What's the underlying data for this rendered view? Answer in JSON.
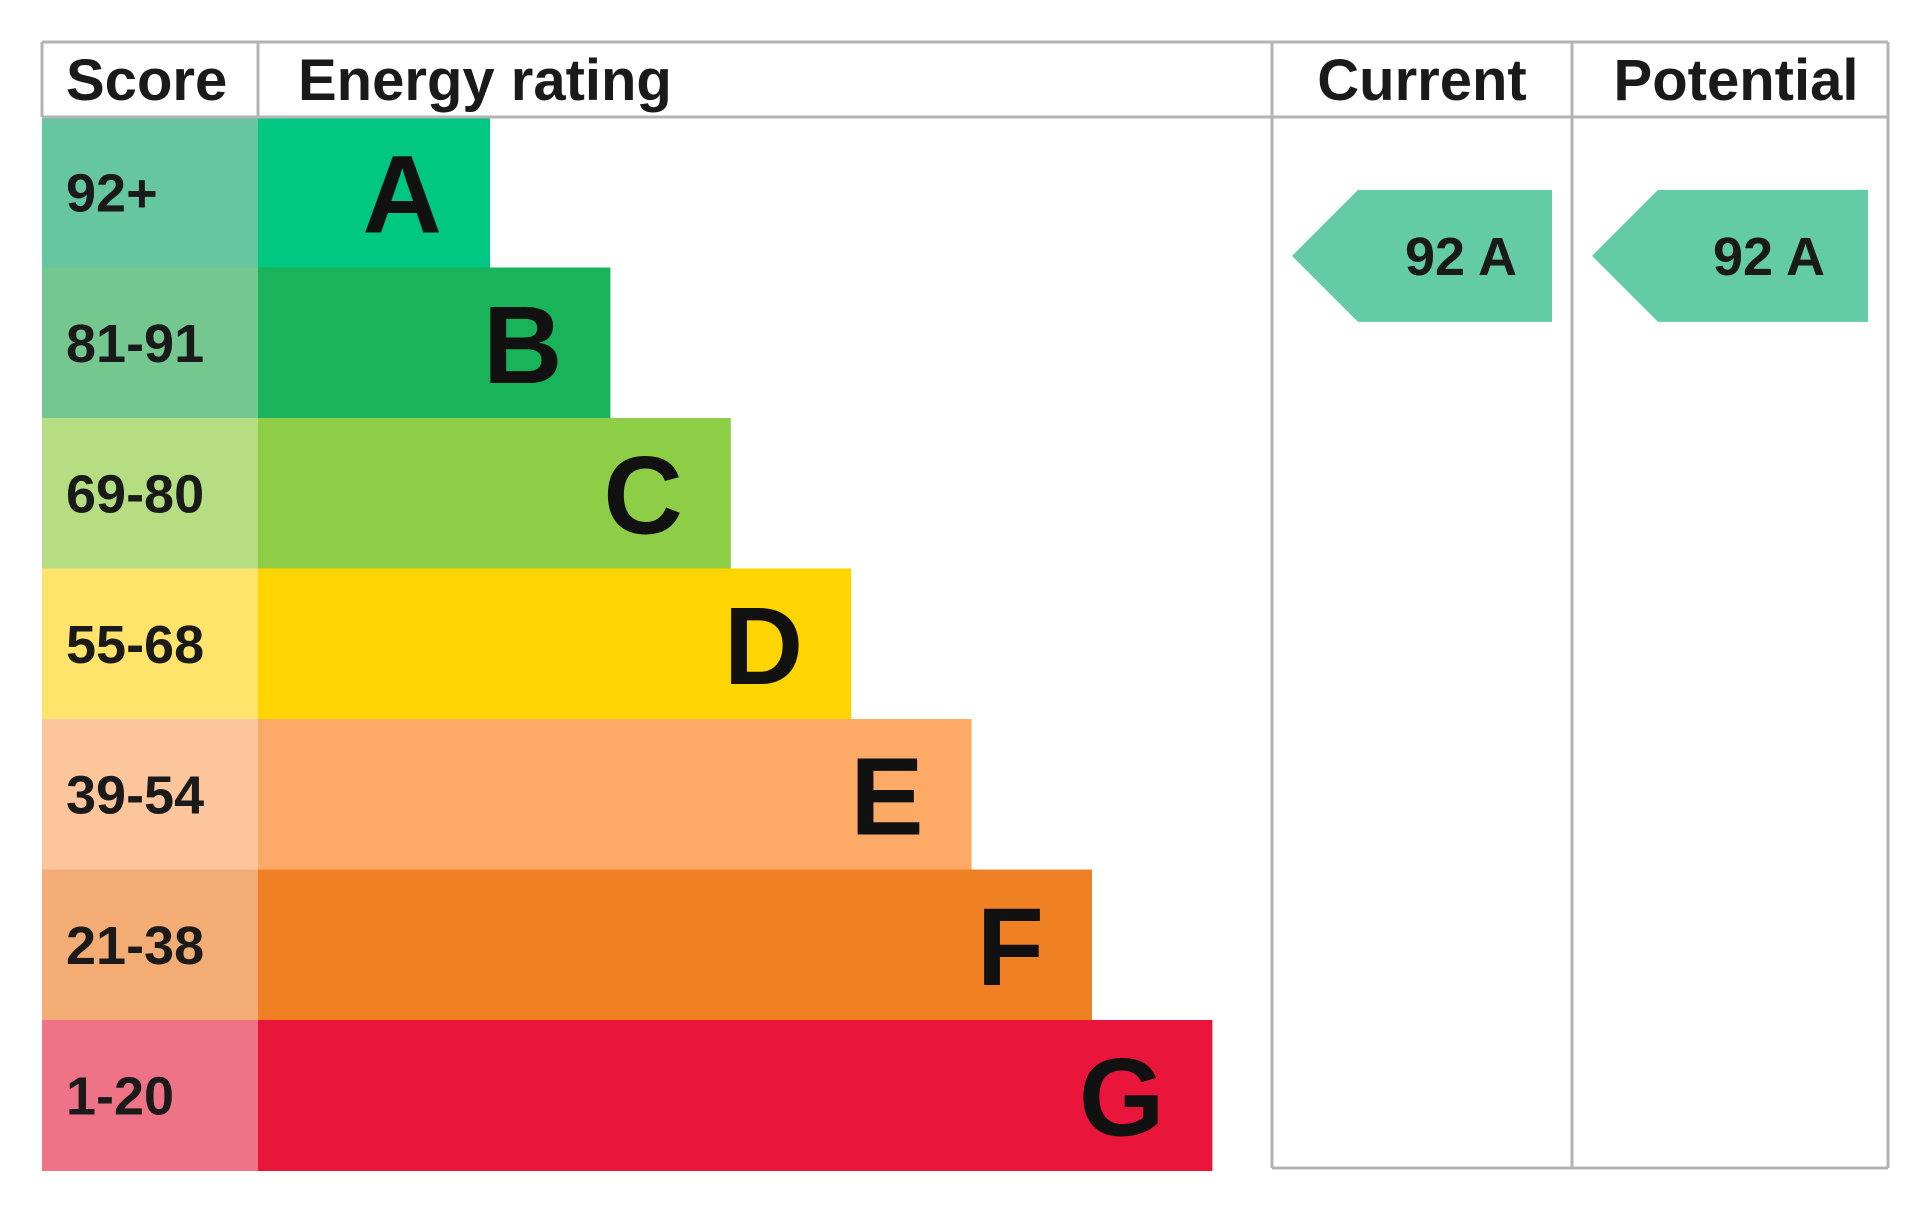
{
  "chart_data": {
    "type": "bar",
    "columns": {
      "score": "Score",
      "rating": "Energy rating",
      "current": "Current",
      "potential": "Potential"
    },
    "bands": [
      {
        "score": "92+",
        "letter": "A",
        "level": 1,
        "color": "#00c781",
        "score_bg": "#66c6a0"
      },
      {
        "score": "81-91",
        "letter": "B",
        "level": 2,
        "color": "#19b459",
        "score_bg": "#74c78f"
      },
      {
        "score": "69-80",
        "letter": "C",
        "level": 3,
        "color": "#8dce46",
        "score_bg": "#b5de82"
      },
      {
        "score": "55-68",
        "letter": "D",
        "level": 4,
        "color": "#ffd500",
        "score_bg": "#ffe36b"
      },
      {
        "score": "39-54",
        "letter": "E",
        "level": 5,
        "color": "#fcaa65",
        "score_bg": "#fdc59b"
      },
      {
        "score": "21-38",
        "letter": "F",
        "level": 6,
        "color": "#ef8023",
        "score_bg": "#f2ac74"
      },
      {
        "score": "1-20",
        "letter": "G",
        "level": 7,
        "color": "#e9153b",
        "score_bg": "#ef7386"
      }
    ],
    "current": {
      "value": 92,
      "band": "A",
      "label": "92 A",
      "color": "#63cba5"
    },
    "potential": {
      "value": 92,
      "band": "A",
      "label": "92 A",
      "color": "#63cba5"
    }
  }
}
